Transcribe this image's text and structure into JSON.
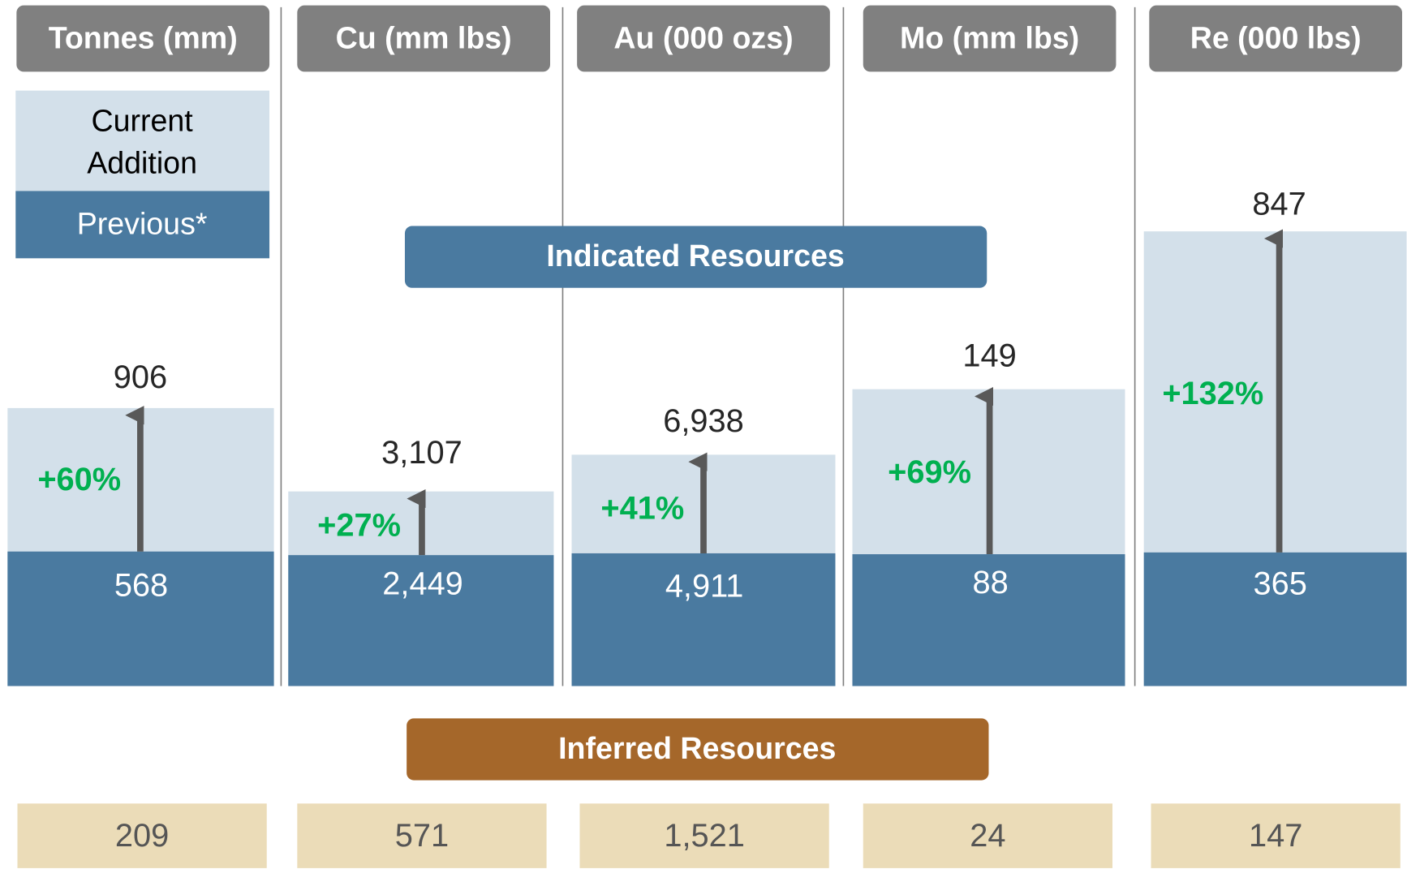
{
  "legend": {
    "current": [
      "Current",
      "Addition"
    ],
    "previous": "Previous*"
  },
  "indicated_title": "Indicated Resources",
  "inferred_title": "Inferred Resources",
  "columns": [
    {
      "header": "Tonnes (mm)",
      "total": "906",
      "change": "+60%",
      "previous": "568",
      "inferred": "209"
    },
    {
      "header": "Cu (mm lbs)",
      "total": "3,107",
      "change": "+27%",
      "previous": "2,449",
      "inferred": "571"
    },
    {
      "header": "Au (000 ozs)",
      "total": "6,938",
      "change": "+41%",
      "previous": "4,911",
      "inferred": "1,521"
    },
    {
      "header": "Mo (mm lbs)",
      "total": "149",
      "change": "+69%",
      "previous": "88",
      "inferred": "24"
    },
    {
      "header": "Re (000 lbs)",
      "total": "847",
      "change": "+132%",
      "previous": "365",
      "inferred": "147"
    }
  ]
}
